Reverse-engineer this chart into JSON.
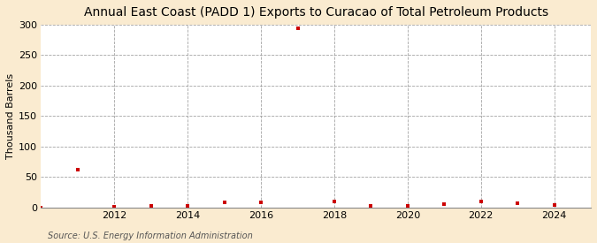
{
  "title": "Annual East Coast (PADD 1) Exports to Curacao of Total Petroleum Products",
  "ylabel": "Thousand Barrels",
  "source": "Source: U.S. Energy Information Administration",
  "years": [
    2010,
    2011,
    2012,
    2013,
    2014,
    2015,
    2016,
    2017,
    2018,
    2019,
    2020,
    2021,
    2022,
    2023,
    2024
  ],
  "values": [
    0,
    62,
    1,
    3,
    2,
    8,
    8,
    293,
    10,
    2,
    2,
    5,
    9,
    7,
    4
  ],
  "xlim": [
    2010.0,
    2025.0
  ],
  "ylim": [
    0,
    300
  ],
  "yticks": [
    0,
    50,
    100,
    150,
    200,
    250,
    300
  ],
  "xticks": [
    2012,
    2014,
    2016,
    2018,
    2020,
    2022,
    2024
  ],
  "marker_color": "#cc0000",
  "marker_size": 3.5,
  "bg_color": "#faebd0",
  "plot_bg_color": "#ffffff",
  "grid_color": "#999999",
  "title_fontsize": 10,
  "label_fontsize": 8,
  "tick_fontsize": 8,
  "source_fontsize": 7
}
